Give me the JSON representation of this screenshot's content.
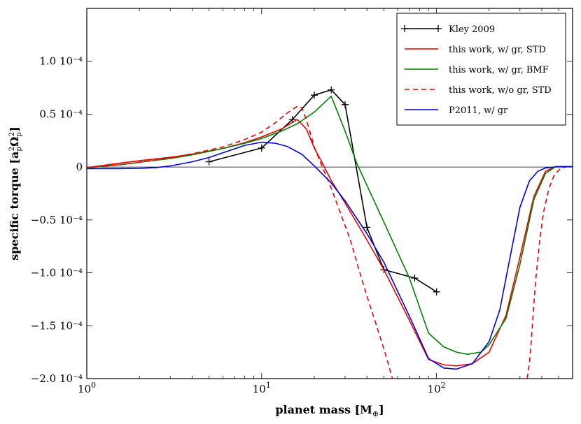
{
  "chart_data": {
    "type": "line",
    "xscale": "log",
    "xlim": [
      1,
      600
    ],
    "ylim": [
      -0.0002,
      0.00015
    ],
    "xlabel_main": "planet mass [M",
    "xlabel_sub": "⊕",
    "xlabel_end": "]",
    "ylabel_main": "specific torque [a",
    "ylabel_sub1": "p",
    "ylabel_sup1": "2",
    "ylabel_mid": "Ω",
    "ylabel_sub2": "p",
    "ylabel_sup2": "2",
    "ylabel_end": "]",
    "xticks": [
      {
        "value": 1,
        "base": "10",
        "exp": "0"
      },
      {
        "value": 10,
        "base": "10",
        "exp": "1"
      },
      {
        "value": 100,
        "base": "10",
        "exp": "2"
      }
    ],
    "yticks": [
      {
        "value": 0.0001,
        "label": "1.0 10⁻⁴"
      },
      {
        "value": 5e-05,
        "label": "0.5 10⁻⁴"
      },
      {
        "value": 0,
        "label": "0"
      },
      {
        "value": -5e-05,
        "label": "−0.5 10⁻⁴"
      },
      {
        "value": -0.0001,
        "label": "−1.0 10⁻⁴"
      },
      {
        "value": -0.00015,
        "label": "−1.5 10⁻⁴"
      },
      {
        "value": -0.0002,
        "label": "−2.0 10⁻⁴"
      }
    ],
    "zero_line": true,
    "legend_position": "top-right",
    "series": [
      {
        "name": "Kley 2009",
        "color": "#000000",
        "style": "solid-plus",
        "x": [
          5,
          10,
          15,
          20,
          25,
          30,
          40,
          50,
          75,
          100
        ],
        "y": [
          5e-06,
          1.8e-05,
          4.5e-05,
          6.8e-05,
          7.3e-05,
          5.9e-05,
          -5.7e-05,
          -9.7e-05,
          -0.000105,
          -0.000118
        ]
      },
      {
        "name": "this work, w/ gr, STD",
        "color": "#ee0000",
        "style": "solid",
        "x": [
          1,
          1.2,
          1.6,
          2,
          3,
          4,
          6,
          8,
          10,
          13,
          16,
          18,
          20,
          22,
          25,
          30,
          40,
          50,
          70,
          90,
          110,
          130,
          160,
          200,
          250,
          300,
          360,
          420,
          480,
          550,
          600
        ],
        "y": [
          -5e-07,
          1.2e-06,
          4e-06,
          6e-06,
          9.2e-06,
          1.22e-05,
          1.75e-05,
          2.3e-05,
          2.85e-05,
          3.6e-05,
          4.5e-05,
          3.6e-05,
          1.8e-05,
          5.2e-06,
          -1.28e-05,
          -3.4e-05,
          -6.9e-05,
          -9.7e-05,
          -0.000145,
          -0.000182,
          -0.000187,
          -0.000188,
          -0.000186,
          -0.000175,
          -0.00014,
          -8.5e-05,
          -2.8e-05,
          -4e-06,
          5e-07,
          5e-07,
          5e-07
        ]
      },
      {
        "name": "this work, w/ gr, BMF",
        "color": "#008000",
        "style": "solid",
        "x": [
          1,
          1.2,
          1.6,
          2,
          3,
          4,
          6,
          8,
          10,
          13,
          16,
          20,
          25,
          30,
          35,
          50,
          70,
          90,
          110,
          130,
          150,
          180,
          200,
          250,
          300,
          360,
          420,
          480,
          550,
          600
        ],
        "y": [
          -1e-06,
          5e-07,
          2.5e-06,
          4.5e-06,
          8e-06,
          1.15e-05,
          1.75e-05,
          2.25e-05,
          2.7e-05,
          3.4e-05,
          4.1e-05,
          5.2e-05,
          6.7e-05,
          3.4e-05,
          3.5e-06,
          -5.2e-05,
          -0.000105,
          -0.000157,
          -0.00017,
          -0.000175,
          -0.000177,
          -0.000175,
          -0.000168,
          -0.000143,
          -9.2e-05,
          -3.1e-05,
          -6e-06,
          5e-07,
          5e-07,
          5e-07
        ]
      },
      {
        "name": "this work, w/o gr, STD",
        "color": "#ee0000",
        "style": "dashed",
        "x": [
          1,
          1.2,
          1.6,
          2,
          3,
          4,
          6,
          8,
          10,
          12,
          14,
          16,
          17,
          18,
          19,
          20,
          22,
          25,
          28,
          32,
          36,
          40,
          45,
          50,
          53,
          55,
          56
        ],
        "y": [
          -5e-07,
          5e-07,
          2.5e-06,
          4.5e-06,
          8.5e-06,
          1.25e-05,
          1.9e-05,
          2.6e-05,
          3.3e-05,
          4.2e-05,
          5.1e-05,
          5.75e-05,
          5.6e-05,
          4.5e-05,
          3.2e-05,
          1.9e-05,
          2e-06,
          -2e-05,
          -4.2e-05,
          -6.8e-05,
          -9.7e-05,
          -0.000122,
          -0.000148,
          -0.000172,
          -0.000186,
          -0.000196,
          -0.0002
        ]
      },
      {
        "name": "this work, w/o gr, STD (high-mass branch)",
        "legend": false,
        "color": "#ee0000",
        "style": "dashed",
        "x": [
          330,
          340,
          350,
          360,
          370,
          390,
          410,
          440,
          470,
          510,
          560,
          600
        ],
        "y": [
          -0.0002,
          -0.000185,
          -0.00016,
          -0.00013,
          -0.000105,
          -6.8e-05,
          -4.2e-05,
          -2e-05,
          -8e-06,
          -1.5e-06,
          5e-07,
          5e-07
        ]
      },
      {
        "name": "P2011, w/ gr",
        "color": "#0000dd",
        "style": "solid",
        "x": [
          1,
          1.5,
          2,
          2.5,
          3,
          4,
          5,
          6,
          8,
          10,
          12,
          14,
          17,
          20,
          25,
          30,
          40,
          50,
          70,
          90,
          110,
          130,
          160,
          200,
          230,
          260,
          300,
          340,
          380,
          420,
          480,
          550,
          600
        ],
        "y": [
          -1.5e-06,
          -1.5e-06,
          -1.2e-06,
          -5e-07,
          1e-06,
          5e-06,
          9e-06,
          1.35e-05,
          2.05e-05,
          2.35e-05,
          2.25e-05,
          1.95e-05,
          1.2e-05,
          1e-06,
          -1.5e-05,
          -3.2e-05,
          -6.3e-05,
          -9e-05,
          -0.000141,
          -0.000181,
          -0.00019,
          -0.000191,
          -0.000186,
          -0.000165,
          -0.000135,
          -9e-05,
          -3.8e-05,
          -1.3e-05,
          -4e-06,
          -8e-07,
          1e-07,
          2e-07,
          2e-07
        ]
      }
    ]
  }
}
